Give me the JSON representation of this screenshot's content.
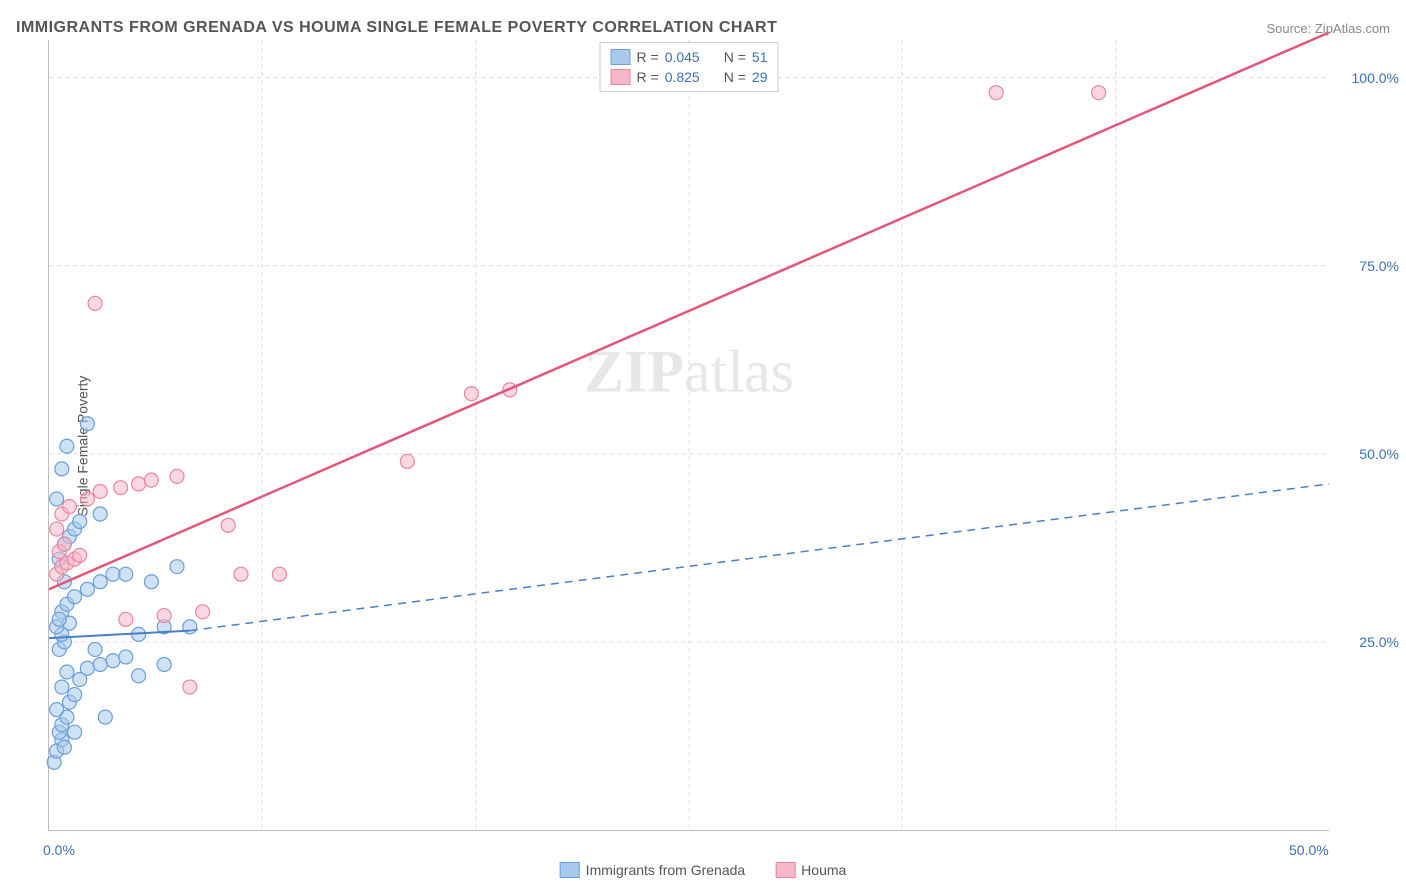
{
  "header": {
    "title": "IMMIGRANTS FROM GRENADA VS HOUMA SINGLE FEMALE POVERTY CORRELATION CHART",
    "source": "Source: ZipAtlas.com"
  },
  "watermark": {
    "part1": "ZIP",
    "part2": "atlas"
  },
  "chart": {
    "type": "scatter",
    "xlim": [
      0,
      50
    ],
    "ylim": [
      0,
      105
    ],
    "x_ticks": [
      0,
      50
    ],
    "x_tick_labels": [
      "0.0%",
      "50.0%"
    ],
    "y_ticks": [
      25,
      50,
      75,
      100
    ],
    "y_tick_labels": [
      "25.0%",
      "50.0%",
      "75.0%",
      "100.0%"
    ],
    "x_minor_grid": [
      8.33,
      16.67,
      25,
      33.33,
      41.67
    ],
    "y_label": "Single Female Poverty",
    "background_color": "#ffffff",
    "grid_color": "#dddddd",
    "axis_color": "#bbbbbb",
    "tick_label_color": "#3b6fb6",
    "series": [
      {
        "name": "Immigrants from Grenada",
        "color_fill": "#a8c8ec",
        "color_stroke": "#6b9fd8",
        "R": "0.045",
        "N": "51",
        "marker_radius": 7,
        "trend": {
          "solid": [
            [
              0,
              25.5
            ],
            [
              5.5,
              26.5
            ]
          ],
          "dashed": [
            [
              5.5,
              26.5
            ],
            [
              50,
              46
            ]
          ],
          "width": 2,
          "color": "#4a7fc4"
        },
        "points": [
          [
            0.2,
            9
          ],
          [
            0.3,
            10.5
          ],
          [
            0.5,
            12
          ],
          [
            0.4,
            13
          ],
          [
            0.6,
            11
          ],
          [
            0.5,
            14
          ],
          [
            0.7,
            15
          ],
          [
            0.3,
            16
          ],
          [
            0.8,
            17
          ],
          [
            1.0,
            18
          ],
          [
            0.5,
            19
          ],
          [
            1.2,
            20
          ],
          [
            0.7,
            21
          ],
          [
            1.5,
            21.5
          ],
          [
            2.0,
            22
          ],
          [
            2.5,
            22.5
          ],
          [
            3.0,
            23
          ],
          [
            0.4,
            24
          ],
          [
            0.6,
            25
          ],
          [
            0.5,
            26
          ],
          [
            0.3,
            27
          ],
          [
            0.8,
            27.5
          ],
          [
            3.5,
            26
          ],
          [
            4.5,
            27
          ],
          [
            5.5,
            27
          ],
          [
            0.5,
            29
          ],
          [
            0.7,
            30
          ],
          [
            1.0,
            31
          ],
          [
            1.5,
            32
          ],
          [
            2.0,
            33
          ],
          [
            2.5,
            34
          ],
          [
            3.0,
            34
          ],
          [
            4.0,
            33
          ],
          [
            5.0,
            35
          ],
          [
            0.4,
            36
          ],
          [
            0.6,
            38
          ],
          [
            0.8,
            39
          ],
          [
            1.0,
            40
          ],
          [
            1.2,
            41
          ],
          [
            2.0,
            42
          ],
          [
            0.3,
            44
          ],
          [
            0.5,
            48
          ],
          [
            0.7,
            51
          ],
          [
            1.5,
            54
          ],
          [
            0.4,
            28
          ],
          [
            0.6,
            33
          ],
          [
            3.5,
            20.5
          ],
          [
            4.5,
            22
          ],
          [
            1.8,
            24
          ],
          [
            2.2,
            15
          ],
          [
            1.0,
            13
          ]
        ]
      },
      {
        "name": "Houma",
        "color_fill": "#f5b8c8",
        "color_stroke": "#e8869f",
        "R": "0.825",
        "N": "29",
        "marker_radius": 7,
        "trend": {
          "solid": [
            [
              0,
              32
            ],
            [
              50,
              106
            ]
          ],
          "dashed": null,
          "width": 2.5,
          "color": "#e3567a"
        },
        "points": [
          [
            0.3,
            34
          ],
          [
            0.5,
            35
          ],
          [
            0.7,
            35.5
          ],
          [
            1.0,
            36
          ],
          [
            0.4,
            37
          ],
          [
            0.6,
            38
          ],
          [
            1.2,
            36.5
          ],
          [
            0.3,
            40
          ],
          [
            0.5,
            42
          ],
          [
            0.8,
            43
          ],
          [
            1.5,
            44
          ],
          [
            2.0,
            45
          ],
          [
            2.8,
            45.5
          ],
          [
            3.5,
            46
          ],
          [
            4.0,
            46.5
          ],
          [
            5.0,
            47
          ],
          [
            3.0,
            28
          ],
          [
            4.5,
            28.5
          ],
          [
            6.0,
            29
          ],
          [
            7.5,
            34
          ],
          [
            9.0,
            34
          ],
          [
            5.5,
            19
          ],
          [
            7.0,
            40.5
          ],
          [
            1.8,
            70
          ],
          [
            14.0,
            49
          ],
          [
            16.5,
            58
          ],
          [
            18.0,
            58.5
          ],
          [
            37.0,
            98
          ],
          [
            41.0,
            98
          ]
        ]
      }
    ],
    "legend_box": {
      "r_label": "R =",
      "n_label": "N ="
    },
    "bottom_legend": [
      {
        "label": "Immigrants from Grenada",
        "fill": "#a8c8ec",
        "stroke": "#6b9fd8"
      },
      {
        "label": "Houma",
        "fill": "#f5b8c8",
        "stroke": "#e8869f"
      }
    ]
  }
}
